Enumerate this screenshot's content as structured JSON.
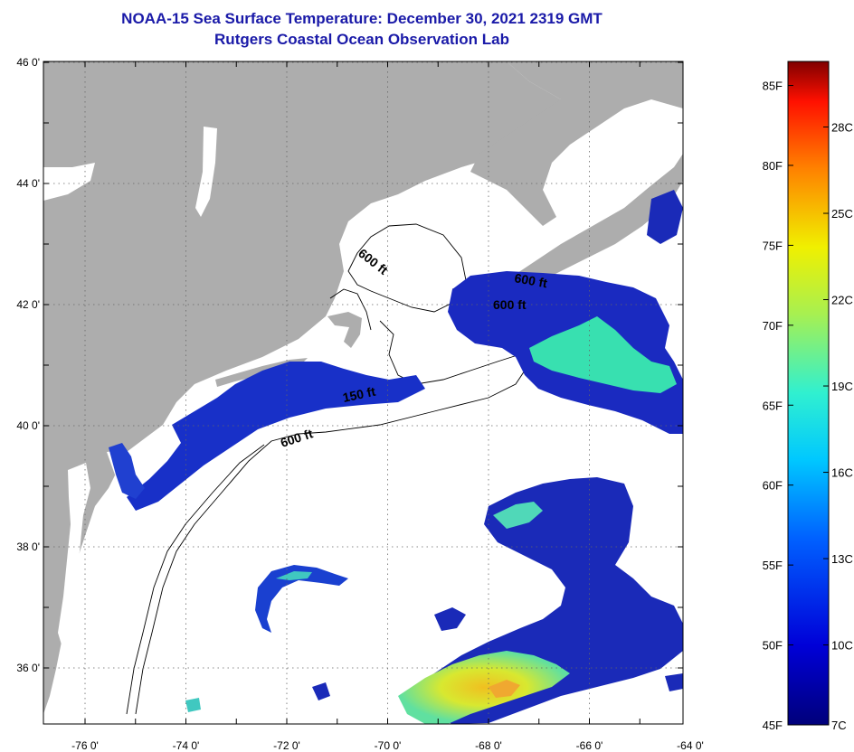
{
  "title_line1": "NOAA-15 Sea Surface Temperature:  December 30, 2021 2319 GMT",
  "title_line2": "Rutgers Coastal Ocean Observation Lab",
  "lat_ticks": [
    {
      "label": "46 0'",
      "value": 46
    },
    {
      "label": "44 0'",
      "value": 44
    },
    {
      "label": "42 0'",
      "value": 42
    },
    {
      "label": "40 0'",
      "value": 40
    },
    {
      "label": "38 0'",
      "value": 38
    },
    {
      "label": "36 0'",
      "value": 36
    }
  ],
  "lon_ticks": [
    {
      "label": "-76 0'",
      "value": -76
    },
    {
      "label": "-74 0'",
      "value": -74
    },
    {
      "label": "-72 0'",
      "value": -72
    },
    {
      "label": "-70 0'",
      "value": -70
    },
    {
      "label": "-68 0'",
      "value": -68
    },
    {
      "label": "-66 0'",
      "value": -66
    },
    {
      "label": "-64 0'",
      "value": -64
    }
  ],
  "contour_labels": [
    "600 ft",
    "600 ft",
    "600 ft",
    "150 ft",
    "600 ft"
  ],
  "colorbar": {
    "fahrenheit": [
      {
        "label": "85F",
        "value": 85
      },
      {
        "label": "80F",
        "value": 80
      },
      {
        "label": "75F",
        "value": 75
      },
      {
        "label": "70F",
        "value": 70
      },
      {
        "label": "65F",
        "value": 65
      },
      {
        "label": "60F",
        "value": 60
      },
      {
        "label": "55F",
        "value": 55
      },
      {
        "label": "50F",
        "value": 50
      },
      {
        "label": "45F",
        "value": 45
      }
    ],
    "celsius": [
      {
        "label": "28C",
        "value": 28
      },
      {
        "label": "25C",
        "value": 25
      },
      {
        "label": "22C",
        "value": 22
      },
      {
        "label": "19C",
        "value": 19
      },
      {
        "label": "16C",
        "value": 16
      },
      {
        "label": "13C",
        "value": 13
      },
      {
        "label": "10C",
        "value": 10
      },
      {
        "label": "7C",
        "value": 7
      }
    ]
  },
  "colors": {
    "land": "#adadad",
    "ocean": "#ffffff",
    "title": "#1a1aa8",
    "sst_cold": "#0a1aa0",
    "sst_warm": "#e8e020"
  }
}
